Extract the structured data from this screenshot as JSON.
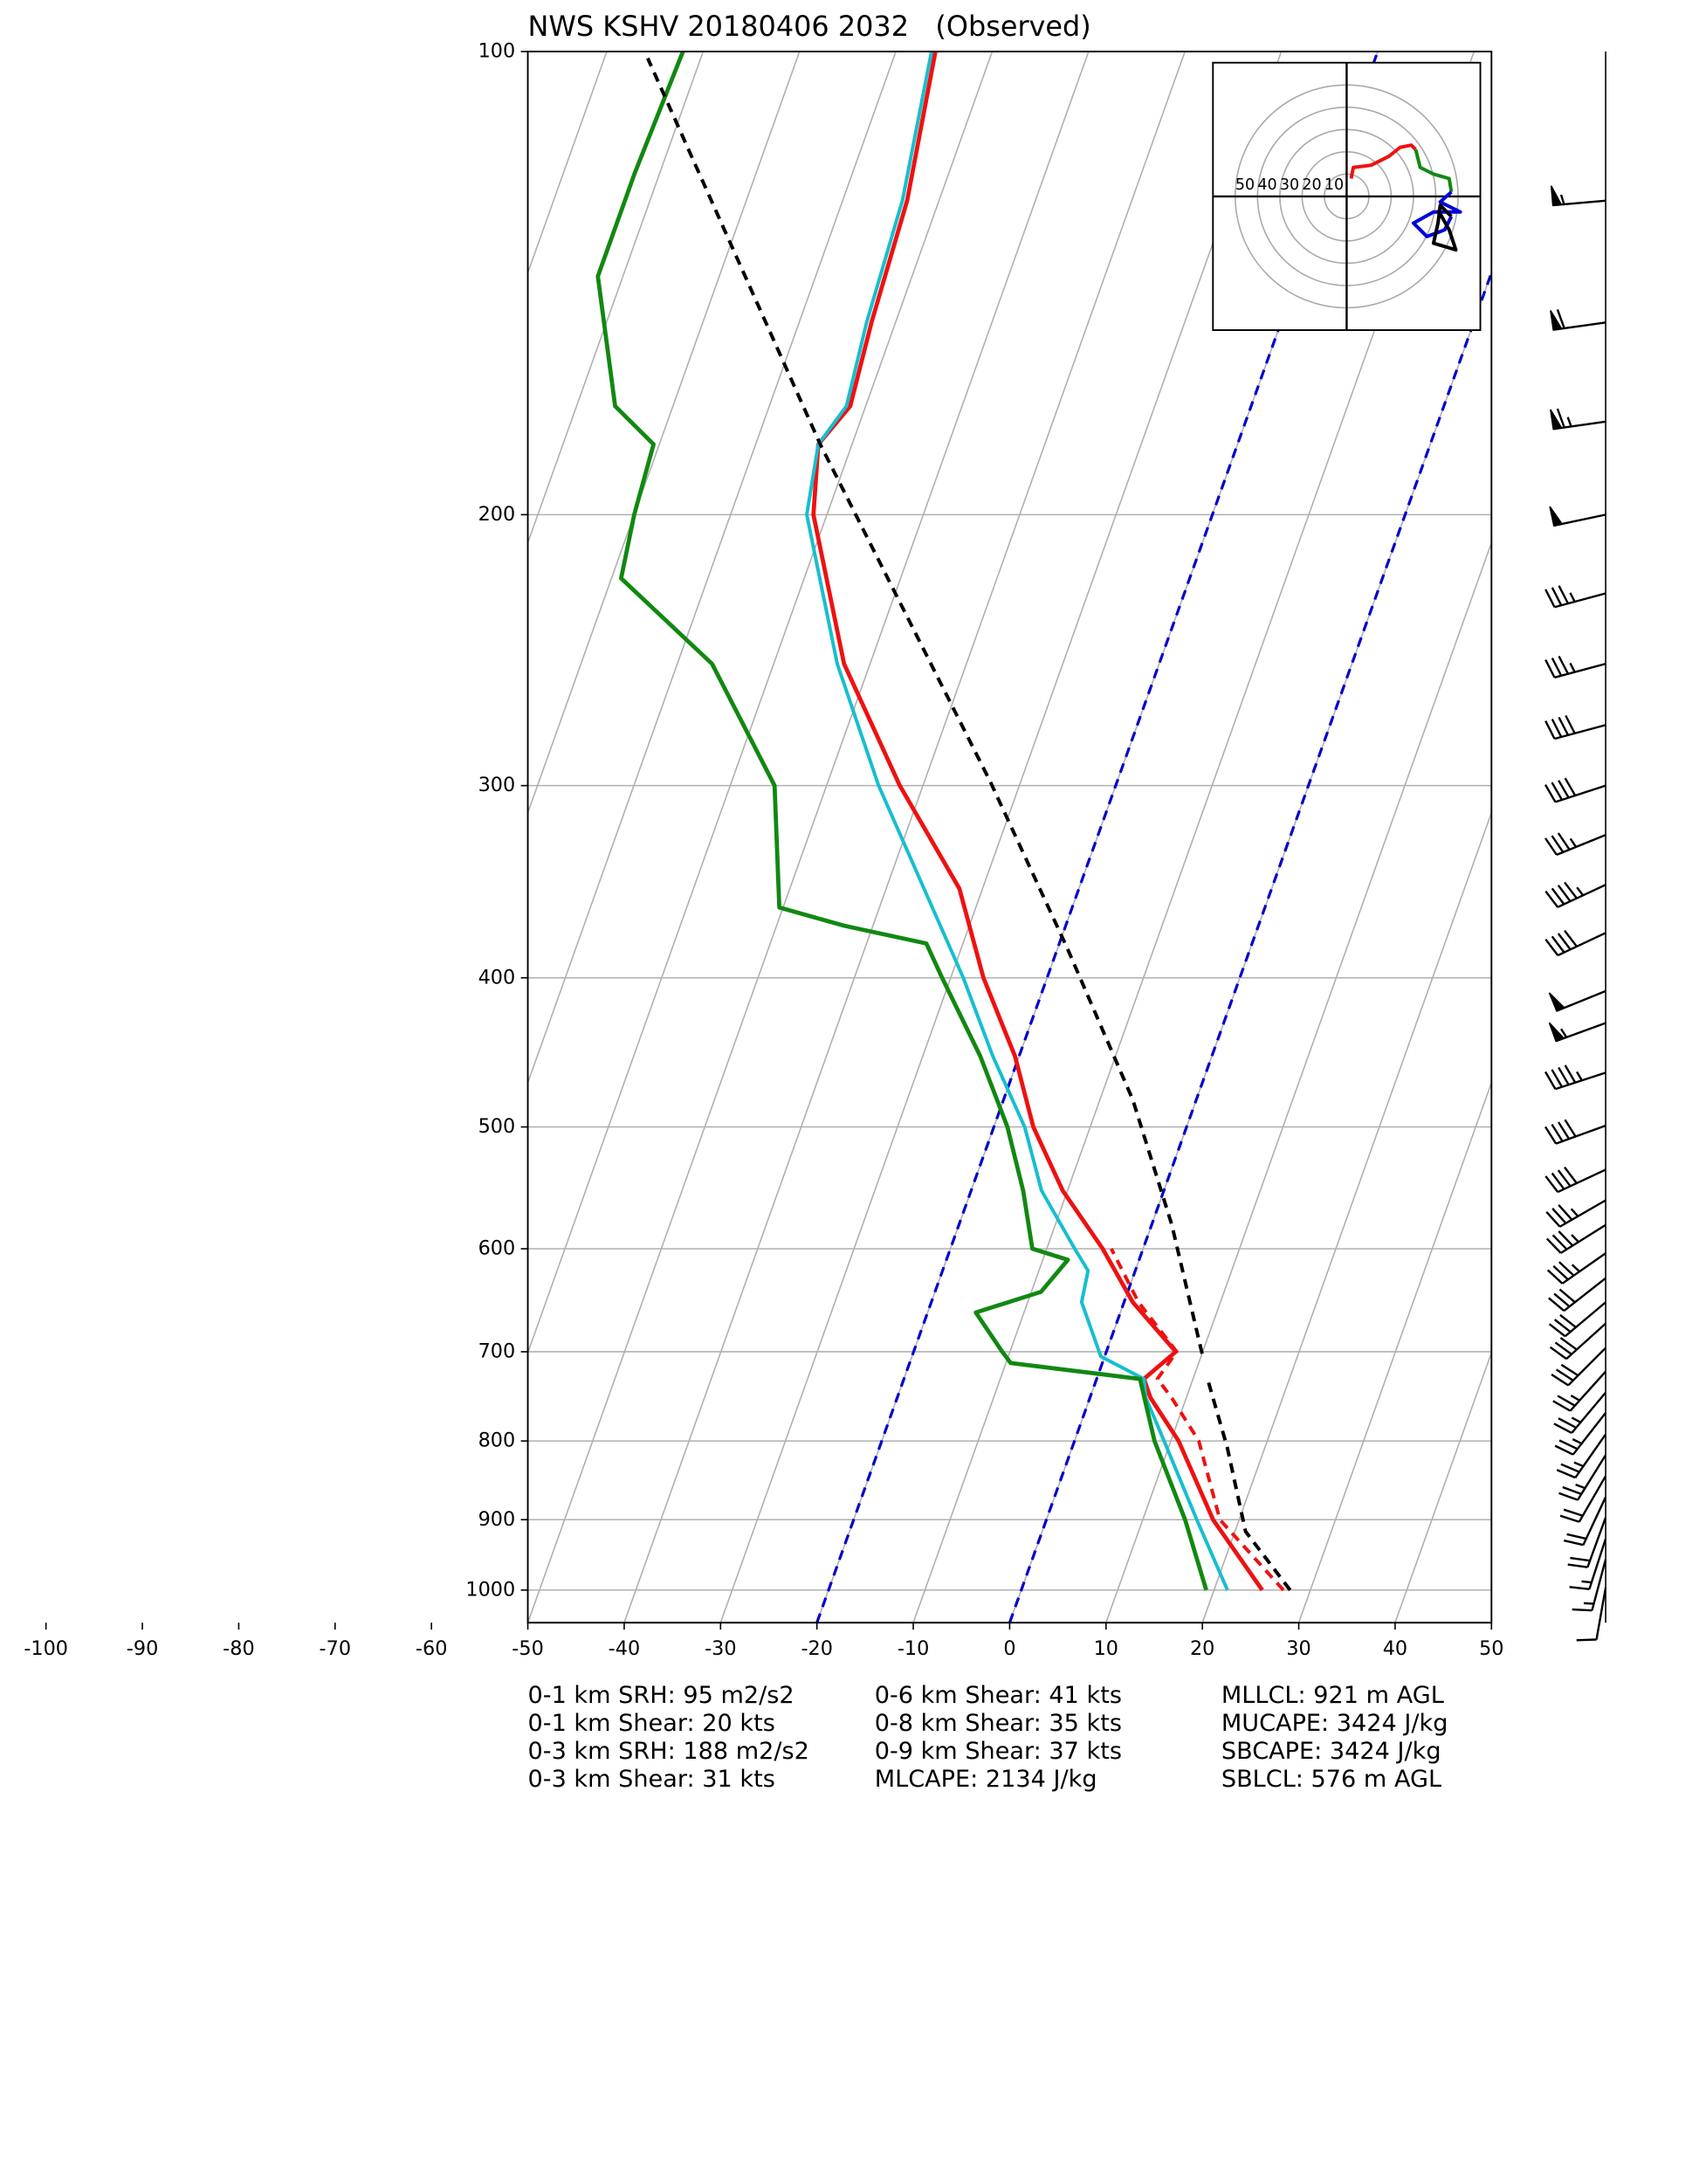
{
  "chart_data": {
    "type": "skewt",
    "title": "NWS KSHV 20180406 2032   (Observed)",
    "xlim": [
      -50,
      50
    ],
    "xticks": [
      -100,
      -90,
      -80,
      -70,
      -60,
      -50,
      -40,
      -30,
      -20,
      -10,
      0,
      10,
      20,
      30,
      40,
      50
    ],
    "ylim": [
      1050,
      100
    ],
    "yticks": [
      100,
      200,
      300,
      400,
      500,
      600,
      700,
      800,
      900,
      1000
    ],
    "log_y": true,
    "grid": true,
    "isotherms": [
      0,
      -20
    ],
    "isotherm_color": "#0000cc",
    "series": [
      {
        "color": "#ee1111",
        "style": "solid",
        "width": 3,
        "pressure": [
          1000,
          900,
          800,
          750,
          729,
          700,
          650,
          600,
          550,
          500,
          450,
          400,
          350,
          300,
          250,
          200,
          180,
          170,
          150,
          125,
          100
        ],
        "values": [
          25,
          17.3,
          10.8,
          6.3,
          4.9,
          7.2,
          0.9,
          -4.2,
          -10.5,
          -15.9,
          -20.4,
          -26.6,
          -32.4,
          -42.4,
          -52.7,
          -61.4,
          -63.5,
          -61.6,
          -62.5,
          -63.3,
          -65.9
        ]
      },
      {
        "color": "#ee1111",
        "style": "dashed",
        "width": 2.5,
        "pressure": [
          1000,
          900,
          800,
          750,
          729,
          700,
          650,
          600
        ],
        "values": [
          27.2,
          18,
          12.9,
          8.5,
          6.3,
          7.3,
          1.5,
          -3.3
        ]
      },
      {
        "color": "#17becf",
        "style": "solid",
        "width": 2.5,
        "pressure": [
          1000,
          900,
          800,
          750,
          729,
          705,
          650,
          620,
          600,
          550,
          500,
          450,
          400,
          300,
          250,
          200,
          180,
          170,
          150,
          125,
          100
        ],
        "values": [
          21.4,
          15.6,
          9.3,
          5.8,
          4.9,
          -0.4,
          -4.4,
          -4.9,
          -7.1,
          -12.7,
          -16.8,
          -22.7,
          -28.7,
          -44.6,
          -53.4,
          -62.1,
          -63.5,
          -62,
          -63,
          -63.8,
          -66.3
        ]
      },
      {
        "color": "#118811",
        "style": "solid",
        "width": 3,
        "pressure": [
          1000,
          900,
          800,
          729,
          712,
          700,
          660,
          640,
          610,
          600,
          550,
          500,
          450,
          400,
          380,
          370,
          360,
          300,
          250,
          220,
          200,
          180,
          170,
          140,
          120,
          100
        ],
        "values": [
          19.2,
          14.4,
          8.3,
          4.5,
          -9.5,
          -10.8,
          -15,
          -9,
          -7.4,
          -11.5,
          -14.6,
          -18.6,
          -24,
          -30.9,
          -33.8,
          -43,
          -50.4,
          -55.4,
          -66.4,
          -79,
          -80,
          -80.6,
          -86,
          -92.6,
          -92.6,
          -92.1
        ]
      },
      {
        "color": "#000000",
        "style": "dashed",
        "width": 2.5,
        "pressure": [
          1000,
          916,
          808,
          729,
          715,
          702,
          579,
          480,
          382,
          298,
          180,
          101
        ],
        "values": [
          27.9,
          21.1,
          16.1,
          11.5,
          null,
          10,
          2.1,
          -6.6,
          -19.1,
          -33.2,
          -63.3,
          -95.5
        ]
      }
    ],
    "wind": {
      "pressure": [
        125,
        150,
        174,
        200,
        225,
        250,
        274,
        300,
        323,
        348,
        374,
        408,
        428,
        461,
        499,
        533,
        558,
        579,
        604,
        627,
        650,
        671,
        696,
        721,
        744,
        767,
        792,
        817,
        843,
        870,
        897,
        926,
        955,
        996
      ],
      "speed": [
        55,
        60,
        65,
        50,
        35,
        35,
        40,
        40,
        35,
        45,
        40,
        50,
        55,
        45,
        40,
        40,
        35,
        35,
        35,
        30,
        30,
        30,
        30,
        25,
        25,
        25,
        25,
        25,
        20,
        20,
        20,
        15,
        15,
        10
      ],
      "direction": [
        265,
        262,
        262,
        258,
        255,
        255,
        255,
        252,
        248,
        245,
        245,
        248,
        250,
        252,
        250,
        245,
        240,
        238,
        235,
        232,
        230,
        228,
        225,
        222,
        220,
        218,
        215,
        212,
        210,
        205,
        200,
        198,
        195,
        190
      ]
    },
    "hodograph": {
      "xlim": [
        -60,
        60
      ],
      "ylim": [
        -60,
        60
      ],
      "rings": [
        50,
        40,
        30,
        20,
        10
      ],
      "series": [
        {
          "color": "#ee1111",
          "u": [
            2,
            3,
            11,
            19,
            24,
            29,
            31
          ],
          "v": [
            8,
            13,
            14,
            18,
            22,
            23,
            21
          ]
        },
        {
          "color": "#118811",
          "u": [
            31,
            33,
            39,
            46,
            47
          ],
          "v": [
            21,
            13,
            10,
            8,
            2
          ]
        },
        {
          "color": "#0000dd",
          "u": [
            47,
            42,
            51,
            39,
            30,
            36,
            44,
            47
          ],
          "v": [
            2,
            -2.5,
            -7,
            -7,
            -12,
            -18,
            -15,
            -9
          ]
        },
        {
          "color": "#000000",
          "u": [
            47,
            42,
            41,
            39,
            49,
            46,
            41
          ],
          "v": [
            -9,
            -4,
            -12,
            -21,
            -24,
            -15,
            -6
          ]
        }
      ]
    },
    "stats": [
      [
        "0-1 km SRH: 95 m2/s2",
        "0-1 km Shear: 20 kts",
        "0-3 km SRH: 188 m2/s2",
        "0-3 km Shear: 31 kts"
      ],
      [
        "0-6 km Shear: 41 kts",
        "0-8 km Shear: 35 kts",
        "0-9 km Shear: 37 kts",
        "MLCAPE: 2134 J/kg"
      ],
      [
        "MLLCL: 921 m AGL",
        "MUCAPE: 3424 J/kg",
        "SBCAPE: 3424 J/kg",
        "SBLCL: 576 m AGL"
      ]
    ]
  }
}
